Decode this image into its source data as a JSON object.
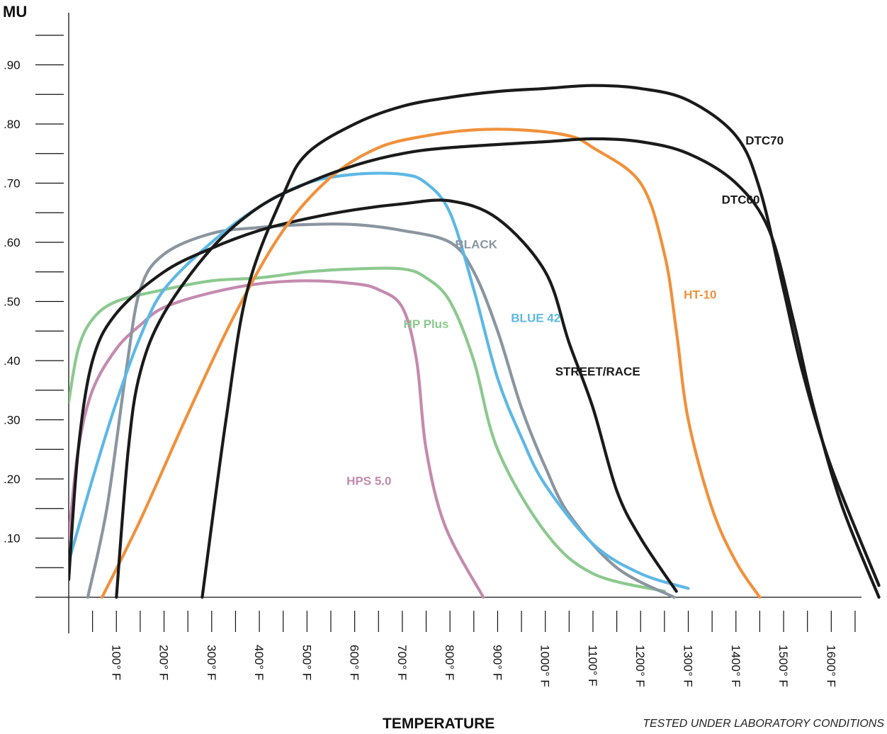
{
  "chart_data": {
    "type": "line",
    "ylabel": "MU",
    "xlabel": "TEMPERATURE",
    "note": "TESTED UNDER LABORATORY CONDITIONS",
    "ylim": [
      0,
      1.0
    ],
    "xlim": [
      0,
      1650
    ],
    "y_ticks": [
      {
        "v": 0.05,
        "label": ""
      },
      {
        "v": 0.1,
        "label": ".10"
      },
      {
        "v": 0.15,
        "label": ""
      },
      {
        "v": 0.2,
        "label": ".20"
      },
      {
        "v": 0.25,
        "label": ""
      },
      {
        "v": 0.3,
        "label": ".30"
      },
      {
        "v": 0.35,
        "label": ""
      },
      {
        "v": 0.4,
        "label": ".40"
      },
      {
        "v": 0.45,
        "label": ""
      },
      {
        "v": 0.5,
        "label": ".50"
      },
      {
        "v": 0.55,
        "label": ""
      },
      {
        "v": 0.6,
        "label": ".60"
      },
      {
        "v": 0.65,
        "label": ""
      },
      {
        "v": 0.7,
        "label": ".70"
      },
      {
        "v": 0.75,
        "label": ""
      },
      {
        "v": 0.8,
        "label": ".80"
      },
      {
        "v": 0.85,
        "label": ""
      },
      {
        "v": 0.9,
        "label": ".90"
      },
      {
        "v": 0.95,
        "label": ""
      }
    ],
    "x_ticks": [
      {
        "v": 50,
        "label": ""
      },
      {
        "v": 100,
        "label": "100° F"
      },
      {
        "v": 150,
        "label": ""
      },
      {
        "v": 200,
        "label": "200° F"
      },
      {
        "v": 250,
        "label": ""
      },
      {
        "v": 300,
        "label": "300° F"
      },
      {
        "v": 350,
        "label": ""
      },
      {
        "v": 400,
        "label": "400° F"
      },
      {
        "v": 450,
        "label": ""
      },
      {
        "v": 500,
        "label": "500° F"
      },
      {
        "v": 550,
        "label": ""
      },
      {
        "v": 600,
        "label": "600° F"
      },
      {
        "v": 650,
        "label": ""
      },
      {
        "v": 700,
        "label": "700° F"
      },
      {
        "v": 750,
        "label": ""
      },
      {
        "v": 800,
        "label": "800° F"
      },
      {
        "v": 850,
        "label": ""
      },
      {
        "v": 900,
        "label": "900° F"
      },
      {
        "v": 950,
        "label": ""
      },
      {
        "v": 1000,
        "label": "1000° F"
      },
      {
        "v": 1050,
        "label": ""
      },
      {
        "v": 1100,
        "label": "1100° F"
      },
      {
        "v": 1150,
        "label": ""
      },
      {
        "v": 1200,
        "label": "1200° F"
      },
      {
        "v": 1250,
        "label": ""
      },
      {
        "v": 1300,
        "label": "1300° F"
      },
      {
        "v": 1350,
        "label": ""
      },
      {
        "v": 1400,
        "label": "1400° F"
      },
      {
        "v": 1450,
        "label": ""
      },
      {
        "v": 1500,
        "label": "1500° F"
      },
      {
        "v": 1550,
        "label": ""
      },
      {
        "v": 1600,
        "label": "1600° F"
      },
      {
        "v": 1650,
        "label": ""
      }
    ],
    "series": [
      {
        "name": "HPS 5.0",
        "color": "#c48aaf",
        "label_at": [
          630,
          0.19
        ],
        "points": [
          [
            0,
            0.1
          ],
          [
            20,
            0.25
          ],
          [
            50,
            0.35
          ],
          [
            100,
            0.42
          ],
          [
            150,
            0.46
          ],
          [
            200,
            0.49
          ],
          [
            300,
            0.515
          ],
          [
            400,
            0.53
          ],
          [
            500,
            0.535
          ],
          [
            600,
            0.53
          ],
          [
            650,
            0.52
          ],
          [
            700,
            0.49
          ],
          [
            730,
            0.4
          ],
          [
            750,
            0.25
          ],
          [
            790,
            0.12
          ],
          [
            870,
            0
          ]
        ]
      },
      {
        "name": "HP Plus",
        "color": "#8cc98f",
        "label_at": [
          750,
          0.455
        ],
        "points": [
          [
            0,
            0.33
          ],
          [
            20,
            0.42
          ],
          [
            50,
            0.47
          ],
          [
            100,
            0.5
          ],
          [
            200,
            0.52
          ],
          [
            300,
            0.535
          ],
          [
            400,
            0.54
          ],
          [
            500,
            0.55
          ],
          [
            600,
            0.555
          ],
          [
            700,
            0.555
          ],
          [
            750,
            0.54
          ],
          [
            800,
            0.5
          ],
          [
            850,
            0.4
          ],
          [
            900,
            0.25
          ],
          [
            1000,
            0.11
          ],
          [
            1100,
            0.04
          ],
          [
            1250,
            0.01
          ]
        ]
      },
      {
        "name": "BLACK",
        "color": "#8a95a0",
        "label_at": [
          855,
          0.59
        ],
        "points": [
          [
            40,
            0
          ],
          [
            80,
            0.15
          ],
          [
            120,
            0.38
          ],
          [
            150,
            0.52
          ],
          [
            200,
            0.58
          ],
          [
            300,
            0.615
          ],
          [
            400,
            0.625
          ],
          [
            500,
            0.63
          ],
          [
            600,
            0.63
          ],
          [
            700,
            0.62
          ],
          [
            800,
            0.6
          ],
          [
            850,
            0.55
          ],
          [
            900,
            0.45
          ],
          [
            950,
            0.32
          ],
          [
            1000,
            0.22
          ],
          [
            1050,
            0.14
          ],
          [
            1150,
            0.05
          ],
          [
            1270,
            0
          ]
        ]
      },
      {
        "name": "BLUE 42",
        "color": "#5db8e5",
        "label_at": [
          980,
          0.465
        ],
        "points": [
          [
            0,
            0.06
          ],
          [
            50,
            0.2
          ],
          [
            100,
            0.33
          ],
          [
            150,
            0.44
          ],
          [
            200,
            0.52
          ],
          [
            300,
            0.6
          ],
          [
            400,
            0.66
          ],
          [
            500,
            0.7
          ],
          [
            600,
            0.715
          ],
          [
            700,
            0.715
          ],
          [
            750,
            0.7
          ],
          [
            800,
            0.65
          ],
          [
            850,
            0.52
          ],
          [
            900,
            0.37
          ],
          [
            950,
            0.27
          ],
          [
            1000,
            0.19
          ],
          [
            1100,
            0.09
          ],
          [
            1200,
            0.04
          ],
          [
            1300,
            0.015
          ]
        ]
      },
      {
        "name": "STREET/RACE",
        "color": "#1a1a1a",
        "label_at": [
          1110,
          0.375
        ],
        "points": [
          [
            0,
            0.03
          ],
          [
            20,
            0.25
          ],
          [
            50,
            0.4
          ],
          [
            100,
            0.48
          ],
          [
            200,
            0.55
          ],
          [
            300,
            0.59
          ],
          [
            400,
            0.62
          ],
          [
            500,
            0.64
          ],
          [
            600,
            0.655
          ],
          [
            700,
            0.665
          ],
          [
            800,
            0.67
          ],
          [
            900,
            0.64
          ],
          [
            1000,
            0.55
          ],
          [
            1050,
            0.43
          ],
          [
            1100,
            0.32
          ],
          [
            1150,
            0.18
          ],
          [
            1200,
            0.1
          ],
          [
            1275,
            0.01
          ]
        ]
      },
      {
        "name": "HT-10",
        "color": "#f0913c",
        "label_at": [
          1325,
          0.505
        ],
        "points": [
          [
            70,
            0
          ],
          [
            150,
            0.13
          ],
          [
            250,
            0.31
          ],
          [
            350,
            0.48
          ],
          [
            450,
            0.62
          ],
          [
            550,
            0.71
          ],
          [
            650,
            0.76
          ],
          [
            750,
            0.78
          ],
          [
            850,
            0.79
          ],
          [
            950,
            0.79
          ],
          [
            1050,
            0.78
          ],
          [
            1100,
            0.76
          ],
          [
            1200,
            0.7
          ],
          [
            1250,
            0.58
          ],
          [
            1275,
            0.45
          ],
          [
            1300,
            0.3
          ],
          [
            1350,
            0.15
          ],
          [
            1400,
            0.06
          ],
          [
            1450,
            0
          ]
        ]
      },
      {
        "name": "DTC60",
        "color": "#1a1a1a",
        "label_at": [
          1410,
          0.665
        ],
        "points": [
          [
            100,
            0
          ],
          [
            125,
            0.25
          ],
          [
            150,
            0.38
          ],
          [
            200,
            0.48
          ],
          [
            300,
            0.59
          ],
          [
            400,
            0.66
          ],
          [
            500,
            0.7
          ],
          [
            600,
            0.73
          ],
          [
            700,
            0.75
          ],
          [
            800,
            0.76
          ],
          [
            1000,
            0.77
          ],
          [
            1100,
            0.775
          ],
          [
            1200,
            0.77
          ],
          [
            1300,
            0.75
          ],
          [
            1400,
            0.7
          ],
          [
            1470,
            0.62
          ],
          [
            1520,
            0.47
          ],
          [
            1560,
            0.33
          ],
          [
            1620,
            0.16
          ],
          [
            1700,
            0
          ]
        ]
      },
      {
        "name": "DTC70",
        "color": "#1a1a1a",
        "label_at": [
          1460,
          0.765
        ],
        "points": [
          [
            280,
            0
          ],
          [
            330,
            0.3
          ],
          [
            375,
            0.52
          ],
          [
            450,
            0.68
          ],
          [
            500,
            0.75
          ],
          [
            600,
            0.8
          ],
          [
            700,
            0.83
          ],
          [
            800,
            0.845
          ],
          [
            900,
            0.855
          ],
          [
            1000,
            0.86
          ],
          [
            1100,
            0.865
          ],
          [
            1200,
            0.86
          ],
          [
            1300,
            0.84
          ],
          [
            1400,
            0.78
          ],
          [
            1450,
            0.69
          ],
          [
            1500,
            0.52
          ],
          [
            1540,
            0.38
          ],
          [
            1600,
            0.22
          ],
          [
            1700,
            0.02
          ]
        ]
      }
    ]
  }
}
